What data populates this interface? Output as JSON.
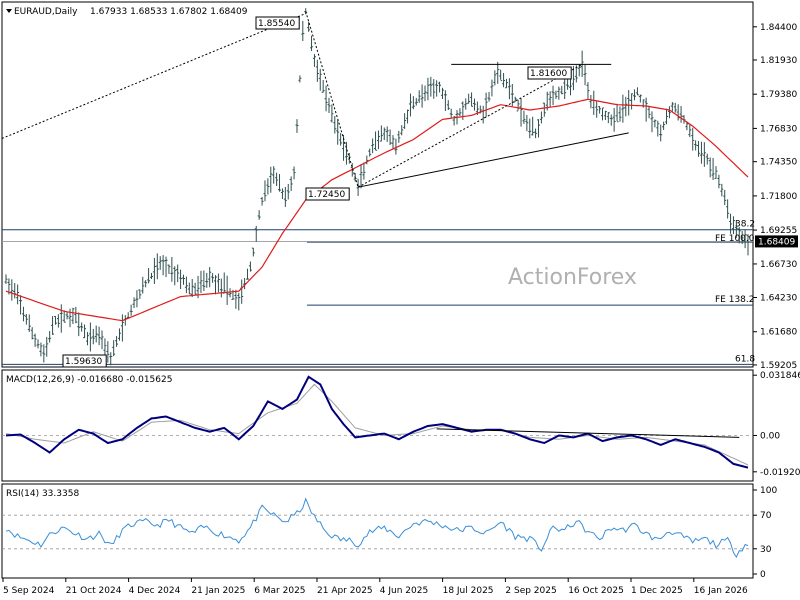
{
  "header": {
    "symbol": "EURAUD,Daily",
    "ohlc": "1.67933 1.68533 1.67802 1.68409"
  },
  "watermark": "ActionForex",
  "colors": {
    "price_bars": "#2f4f4f",
    "ema": "#e01b1b",
    "macd_main": "#00007f",
    "macd_signal": "#a0a0a0",
    "rsi": "#3a8fd8",
    "trendline": "#000000",
    "dashed": "#000000",
    "hline_blue": "#1f3f6f",
    "current_price_bg": "#000000"
  },
  "chart_data": [
    {
      "type": "candlestick",
      "name": "price",
      "title": "EURAUD,Daily",
      "ylim": [
        1.592,
        1.861
      ],
      "y_ticks": [
        "1.84400",
        "1.81930",
        "1.79380",
        "1.76830",
        "1.74350",
        "1.71800",
        "1.69255",
        "1.66730",
        "1.64230",
        "1.61680",
        "1.59205"
      ],
      "y_tick_values": [
        1.844,
        1.8193,
        1.7938,
        1.7683,
        1.7435,
        1.718,
        1.69255,
        1.6673,
        1.6423,
        1.6168,
        1.59205
      ],
      "current_price": "1.68409",
      "current_price_value": 1.68409,
      "x_labels": [
        "5 Sep 2024",
        "21 Oct 2024",
        "4 Dec 2024",
        "21 Jan 2025",
        "6 Mar 2025",
        "21 Apr 2025",
        "4 Jun 2025",
        "18 Jul 2025",
        "2 Sep 2025",
        "16 Oct 2025",
        "1 Dec 2025",
        "16 Jan 2026"
      ],
      "trend_points": [
        {
          "i": 0,
          "v": 1.655
        },
        {
          "i": 4,
          "v": 1.642
        },
        {
          "i": 9,
          "v": 1.615
        },
        {
          "i": 13,
          "v": 1.6
        },
        {
          "i": 17,
          "v": 1.625
        },
        {
          "i": 23,
          "v": 1.63
        },
        {
          "i": 28,
          "v": 1.612
        },
        {
          "i": 32,
          "v": 1.615
        },
        {
          "i": 36,
          "v": 1.598
        },
        {
          "i": 41,
          "v": 1.625
        },
        {
          "i": 47,
          "v": 1.65
        },
        {
          "i": 53,
          "v": 1.668
        },
        {
          "i": 59,
          "v": 1.66
        },
        {
          "i": 64,
          "v": 1.647
        },
        {
          "i": 70,
          "v": 1.658
        },
        {
          "i": 76,
          "v": 1.648
        },
        {
          "i": 80,
          "v": 1.64
        },
        {
          "i": 84,
          "v": 1.665
        },
        {
          "i": 88,
          "v": 1.715
        },
        {
          "i": 92,
          "v": 1.735
        },
        {
          "i": 96,
          "v": 1.715
        },
        {
          "i": 99,
          "v": 1.735
        },
        {
          "i": 102,
          "v": 1.84
        },
        {
          "i": 103,
          "v": 1.8554
        },
        {
          "i": 106,
          "v": 1.82
        },
        {
          "i": 110,
          "v": 1.79
        },
        {
          "i": 114,
          "v": 1.765
        },
        {
          "i": 118,
          "v": 1.745
        },
        {
          "i": 121,
          "v": 1.7245
        },
        {
          "i": 125,
          "v": 1.75
        },
        {
          "i": 130,
          "v": 1.765
        },
        {
          "i": 134,
          "v": 1.755
        },
        {
          "i": 139,
          "v": 1.785
        },
        {
          "i": 144,
          "v": 1.795
        },
        {
          "i": 149,
          "v": 1.8
        },
        {
          "i": 154,
          "v": 1.775
        },
        {
          "i": 159,
          "v": 1.79
        },
        {
          "i": 164,
          "v": 1.78
        },
        {
          "i": 169,
          "v": 1.81
        },
        {
          "i": 174,
          "v": 1.795
        },
        {
          "i": 178,
          "v": 1.775
        },
        {
          "i": 182,
          "v": 1.765
        },
        {
          "i": 186,
          "v": 1.79
        },
        {
          "i": 190,
          "v": 1.795
        },
        {
          "i": 195,
          "v": 1.805
        },
        {
          "i": 198,
          "v": 1.816
        },
        {
          "i": 201,
          "v": 1.79
        },
        {
          "i": 205,
          "v": 1.78
        },
        {
          "i": 209,
          "v": 1.775
        },
        {
          "i": 213,
          "v": 1.785
        },
        {
          "i": 217,
          "v": 1.795
        },
        {
          "i": 221,
          "v": 1.78
        },
        {
          "i": 225,
          "v": 1.765
        },
        {
          "i": 229,
          "v": 1.785
        },
        {
          "i": 233,
          "v": 1.775
        },
        {
          "i": 237,
          "v": 1.755
        },
        {
          "i": 241,
          "v": 1.745
        },
        {
          "i": 245,
          "v": 1.73
        },
        {
          "i": 249,
          "v": 1.7
        },
        {
          "i": 252,
          "v": 1.69
        },
        {
          "i": 255,
          "v": 1.684
        }
      ],
      "ema_points": [
        {
          "i": 0,
          "v": 1.647
        },
        {
          "i": 20,
          "v": 1.632
        },
        {
          "i": 40,
          "v": 1.625
        },
        {
          "i": 60,
          "v": 1.643
        },
        {
          "i": 80,
          "v": 1.647
        },
        {
          "i": 88,
          "v": 1.665
        },
        {
          "i": 95,
          "v": 1.69
        },
        {
          "i": 103,
          "v": 1.715
        },
        {
          "i": 112,
          "v": 1.73
        },
        {
          "i": 121,
          "v": 1.74
        },
        {
          "i": 130,
          "v": 1.75
        },
        {
          "i": 140,
          "v": 1.76
        },
        {
          "i": 150,
          "v": 1.775
        },
        {
          "i": 160,
          "v": 1.778
        },
        {
          "i": 170,
          "v": 1.786
        },
        {
          "i": 180,
          "v": 1.782
        },
        {
          "i": 190,
          "v": 1.785
        },
        {
          "i": 200,
          "v": 1.79
        },
        {
          "i": 210,
          "v": 1.786
        },
        {
          "i": 220,
          "v": 1.785
        },
        {
          "i": 228,
          "v": 1.782
        },
        {
          "i": 236,
          "v": 1.77
        },
        {
          "i": 244,
          "v": 1.755
        },
        {
          "i": 255,
          "v": 1.732
        }
      ],
      "bar_count": 256,
      "annotations": {
        "high_label": "1.85540",
        "high_value": 1.8554,
        "high_index": 103,
        "low_left_label": "1.59630",
        "low_left_value": 1.5963,
        "low_left_index": 36,
        "mid_low_label": "1.72450",
        "mid_low_value": 1.7245,
        "mid_low_index": 121,
        "upper_high_label": "1.81600",
        "upper_high_value": 1.816,
        "upper_high_index": 198,
        "fib_labels": [
          "38.2",
          "FE 100.0",
          "FE 138.2",
          "61.8"
        ],
        "fib_values": [
          1.6928,
          1.6895,
          1.6366,
          1.5925
        ]
      }
    },
    {
      "type": "line",
      "name": "macd",
      "title": "MACD(12,26,9) -0.016680 -0.015625",
      "ylim": [
        -0.023,
        0.033
      ],
      "y_ticks": [
        "0.031846",
        "0.00",
        "-0.019202"
      ],
      "y_tick_values": [
        0.031846,
        0.0,
        -0.019202
      ],
      "series": [
        {
          "points": [
            {
              "i": 0,
              "v": 0.0
            },
            {
              "i": 5,
              "v": 0.0005
            },
            {
              "i": 10,
              "v": -0.004
            },
            {
              "i": 15,
              "v": -0.009
            },
            {
              "i": 20,
              "v": -0.002
            },
            {
              "i": 25,
              "v": 0.003
            },
            {
              "i": 30,
              "v": 0.001
            },
            {
              "i": 35,
              "v": -0.004
            },
            {
              "i": 40,
              "v": -0.002
            },
            {
              "i": 45,
              "v": 0.004
            },
            {
              "i": 50,
              "v": 0.009
            },
            {
              "i": 55,
              "v": 0.01
            },
            {
              "i": 60,
              "v": 0.007
            },
            {
              "i": 65,
              "v": 0.004
            },
            {
              "i": 70,
              "v": 0.002
            },
            {
              "i": 75,
              "v": 0.004
            },
            {
              "i": 80,
              "v": -0.002
            },
            {
              "i": 85,
              "v": 0.005
            },
            {
              "i": 90,
              "v": 0.018
            },
            {
              "i": 95,
              "v": 0.014
            },
            {
              "i": 100,
              "v": 0.019
            },
            {
              "i": 104,
              "v": 0.031
            },
            {
              "i": 108,
              "v": 0.027
            },
            {
              "i": 112,
              "v": 0.014
            },
            {
              "i": 116,
              "v": 0.006
            },
            {
              "i": 120,
              "v": -0.001
            },
            {
              "i": 125,
              "v": 0.0
            },
            {
              "i": 130,
              "v": 0.001
            },
            {
              "i": 135,
              "v": -0.002
            },
            {
              "i": 140,
              "v": 0.002
            },
            {
              "i": 145,
              "v": 0.005
            },
            {
              "i": 150,
              "v": 0.006
            },
            {
              "i": 155,
              "v": 0.004
            },
            {
              "i": 160,
              "v": 0.002
            },
            {
              "i": 165,
              "v": 0.003
            },
            {
              "i": 170,
              "v": 0.003
            },
            {
              "i": 175,
              "v": 0.001
            },
            {
              "i": 180,
              "v": -0.002
            },
            {
              "i": 185,
              "v": -0.004
            },
            {
              "i": 190,
              "v": 0.0
            },
            {
              "i": 195,
              "v": -0.001
            },
            {
              "i": 200,
              "v": 0.001
            },
            {
              "i": 205,
              "v": -0.003
            },
            {
              "i": 210,
              "v": -0.001
            },
            {
              "i": 215,
              "v": 0.0
            },
            {
              "i": 220,
              "v": -0.002
            },
            {
              "i": 225,
              "v": -0.005
            },
            {
              "i": 230,
              "v": -0.002
            },
            {
              "i": 235,
              "v": -0.004
            },
            {
              "i": 240,
              "v": -0.006
            },
            {
              "i": 245,
              "v": -0.009
            },
            {
              "i": 250,
              "v": -0.015
            },
            {
              "i": 255,
              "v": -0.017
            }
          ]
        },
        {
          "points": [
            {
              "i": 0,
              "v": 0.001
            },
            {
              "i": 10,
              "v": -0.002
            },
            {
              "i": 20,
              "v": -0.004
            },
            {
              "i": 30,
              "v": 0.002
            },
            {
              "i": 40,
              "v": -0.003
            },
            {
              "i": 50,
              "v": 0.007
            },
            {
              "i": 60,
              "v": 0.008
            },
            {
              "i": 70,
              "v": 0.003
            },
            {
              "i": 80,
              "v": 0.001
            },
            {
              "i": 90,
              "v": 0.012
            },
            {
              "i": 100,
              "v": 0.017
            },
            {
              "i": 106,
              "v": 0.027
            },
            {
              "i": 112,
              "v": 0.018
            },
            {
              "i": 120,
              "v": 0.004
            },
            {
              "i": 130,
              "v": 0.0
            },
            {
              "i": 140,
              "v": 0.001
            },
            {
              "i": 150,
              "v": 0.005
            },
            {
              "i": 160,
              "v": 0.003
            },
            {
              "i": 170,
              "v": 0.003
            },
            {
              "i": 180,
              "v": -0.001
            },
            {
              "i": 190,
              "v": -0.002
            },
            {
              "i": 200,
              "v": 0.0
            },
            {
              "i": 210,
              "v": -0.002
            },
            {
              "i": 220,
              "v": -0.001
            },
            {
              "i": 230,
              "v": -0.003
            },
            {
              "i": 240,
              "v": -0.005
            },
            {
              "i": 250,
              "v": -0.012
            },
            {
              "i": 255,
              "v": -0.0156
            }
          ]
        }
      ]
    },
    {
      "type": "line",
      "name": "rsi",
      "title": "RSI(14) 33.3358",
      "ylim": [
        0,
        100
      ],
      "y_ticks": [
        "100",
        "70",
        "30",
        "0"
      ],
      "y_tick_values": [
        100,
        70,
        30,
        0
      ],
      "series": [
        {
          "points": [
            {
              "i": 0,
              "v": 55
            },
            {
              "i": 4,
              "v": 45
            },
            {
              "i": 8,
              "v": 40
            },
            {
              "i": 12,
              "v": 35
            },
            {
              "i": 16,
              "v": 50
            },
            {
              "i": 20,
              "v": 55
            },
            {
              "i": 24,
              "v": 48
            },
            {
              "i": 28,
              "v": 42
            },
            {
              "i": 32,
              "v": 48
            },
            {
              "i": 36,
              "v": 33
            },
            {
              "i": 40,
              "v": 52
            },
            {
              "i": 44,
              "v": 60
            },
            {
              "i": 48,
              "v": 62
            },
            {
              "i": 52,
              "v": 58
            },
            {
              "i": 56,
              "v": 64
            },
            {
              "i": 60,
              "v": 55
            },
            {
              "i": 64,
              "v": 48
            },
            {
              "i": 68,
              "v": 56
            },
            {
              "i": 72,
              "v": 50
            },
            {
              "i": 76,
              "v": 45
            },
            {
              "i": 80,
              "v": 40
            },
            {
              "i": 84,
              "v": 55
            },
            {
              "i": 88,
              "v": 78
            },
            {
              "i": 92,
              "v": 70
            },
            {
              "i": 96,
              "v": 62
            },
            {
              "i": 100,
              "v": 72
            },
            {
              "i": 103,
              "v": 86
            },
            {
              "i": 106,
              "v": 68
            },
            {
              "i": 110,
              "v": 50
            },
            {
              "i": 114,
              "v": 42
            },
            {
              "i": 118,
              "v": 40
            },
            {
              "i": 121,
              "v": 36
            },
            {
              "i": 125,
              "v": 50
            },
            {
              "i": 130,
              "v": 55
            },
            {
              "i": 135,
              "v": 45
            },
            {
              "i": 140,
              "v": 60
            },
            {
              "i": 145,
              "v": 63
            },
            {
              "i": 150,
              "v": 58
            },
            {
              "i": 155,
              "v": 52
            },
            {
              "i": 160,
              "v": 55
            },
            {
              "i": 165,
              "v": 48
            },
            {
              "i": 170,
              "v": 62
            },
            {
              "i": 175,
              "v": 45
            },
            {
              "i": 180,
              "v": 42
            },
            {
              "i": 184,
              "v": 30
            },
            {
              "i": 188,
              "v": 55
            },
            {
              "i": 192,
              "v": 52
            },
            {
              "i": 196,
              "v": 63
            },
            {
              "i": 200,
              "v": 50
            },
            {
              "i": 204,
              "v": 42
            },
            {
              "i": 208,
              "v": 55
            },
            {
              "i": 212,
              "v": 52
            },
            {
              "i": 216,
              "v": 58
            },
            {
              "i": 220,
              "v": 48
            },
            {
              "i": 224,
              "v": 40
            },
            {
              "i": 228,
              "v": 52
            },
            {
              "i": 232,
              "v": 45
            },
            {
              "i": 236,
              "v": 38
            },
            {
              "i": 240,
              "v": 42
            },
            {
              "i": 244,
              "v": 35
            },
            {
              "i": 248,
              "v": 40
            },
            {
              "i": 251,
              "v": 24
            },
            {
              "i": 254,
              "v": 35
            },
            {
              "i": 255,
              "v": 33
            }
          ]
        }
      ]
    }
  ]
}
